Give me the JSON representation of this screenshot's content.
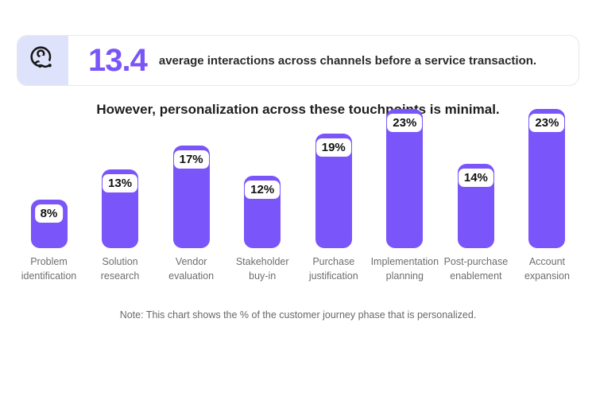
{
  "banner": {
    "stat_value": "13.4",
    "stat_description": "average interactions across channels before a service transaction.",
    "icon": "customer-journey-icon"
  },
  "note": "Note: This chart shows the % of the customer journey phase that is personalized.",
  "colors": {
    "bar": "#7A55FA",
    "stat_text": "#7A55FA",
    "icon_background": "#DEE2FA",
    "banner_border": "#E7E7F0",
    "title_text": "#1E1E21",
    "category_label_text": "#6E6E73",
    "note_text": "#69696E",
    "badge_background": "#FFFFFF",
    "badge_text": "#121212"
  },
  "chart_data": {
    "type": "bar",
    "title": "However, personalization across these touchpoints is minimal.",
    "categories": [
      "Problem identification",
      "Solution research",
      "Vendor evaluation",
      "Stakeholder buy-in",
      "Purchase justification",
      "Implementation planning",
      "Post-purchase enablement",
      "Account expansion"
    ],
    "category_lines": [
      [
        "Problem",
        "identification"
      ],
      [
        "Solution",
        "research"
      ],
      [
        "Vendor",
        "evaluation"
      ],
      [
        "Stakeholder",
        "buy-in"
      ],
      [
        "Purchase",
        "justification"
      ],
      [
        "Implementation",
        "planning"
      ],
      [
        "Post-purchase",
        "enablement"
      ],
      [
        "Account",
        "expansion"
      ]
    ],
    "values": [
      8,
      13,
      17,
      12,
      19,
      23,
      14,
      23
    ],
    "value_labels": [
      "8%",
      "13%",
      "17%",
      "12%",
      "19%",
      "23%",
      "14%",
      "23%"
    ],
    "xlabel": "",
    "ylabel": "",
    "ylim": [
      0,
      25
    ],
    "grid": false,
    "legend": false,
    "bar_color": "#7A55FA",
    "value_label_style": "white rounded badge inside bar top"
  }
}
